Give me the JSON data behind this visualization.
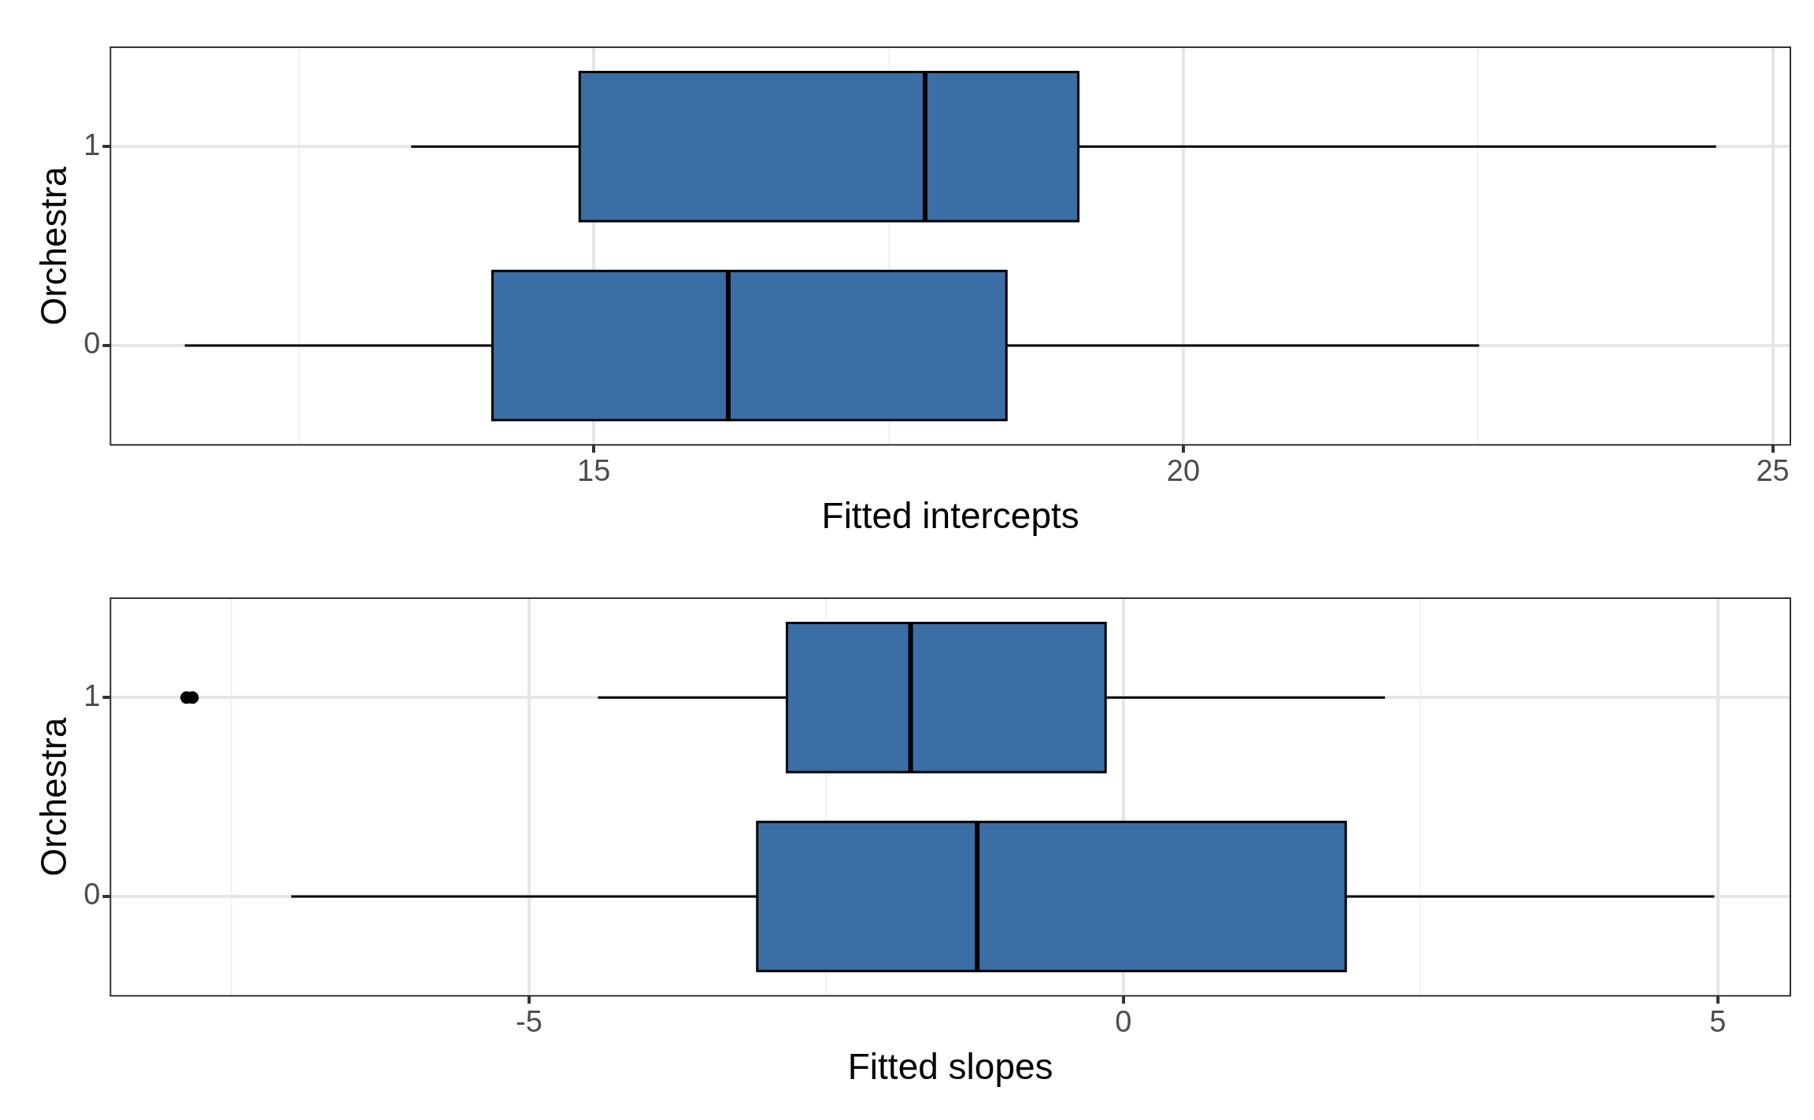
{
  "chart_data": [
    {
      "type": "box",
      "orientation": "horizontal",
      "categories": [
        "1",
        "0"
      ],
      "color": "#3a6ea5",
      "xlabel": "Fitted intercepts",
      "ylabel": "Orchestra",
      "grid": true,
      "xlim": [
        10.9,
        25.15
      ],
      "xticks": [
        {
          "value": 12.5,
          "label": null
        },
        15,
        {
          "value": 17.5,
          "label": null
        },
        20,
        {
          "value": 22.5,
          "label": null
        },
        25
      ],
      "boxes": [
        {
          "low": 13.45,
          "q1": 14.88,
          "median": 17.81,
          "q3": 19.11,
          "high": 24.52
        },
        {
          "low": 11.53,
          "q1": 14.14,
          "median": 16.14,
          "q3": 18.5,
          "high": 22.51
        }
      ]
    },
    {
      "type": "box",
      "orientation": "horizontal",
      "categories": [
        "1",
        "0"
      ],
      "color": "#3a6ea5",
      "xlabel": "Fitted slopes",
      "ylabel": "Orchestra",
      "grid": true,
      "xlim": [
        -8.52,
        5.61
      ],
      "xticks": [
        {
          "value": -7.5,
          "label": null
        },
        -5,
        {
          "value": -2.5,
          "label": null
        },
        0,
        {
          "value": 2.5,
          "label": null
        },
        5
      ],
      "boxes": [
        {
          "low": -4.42,
          "q1": -2.83,
          "median": -1.79,
          "q3": -0.15,
          "high": 2.2,
          "outliers": [
            -7.88,
            -7.83
          ]
        },
        {
          "low": -7.0,
          "q1": -3.08,
          "median": -1.23,
          "q3": 1.87,
          "high": 4.97
        }
      ]
    }
  ]
}
